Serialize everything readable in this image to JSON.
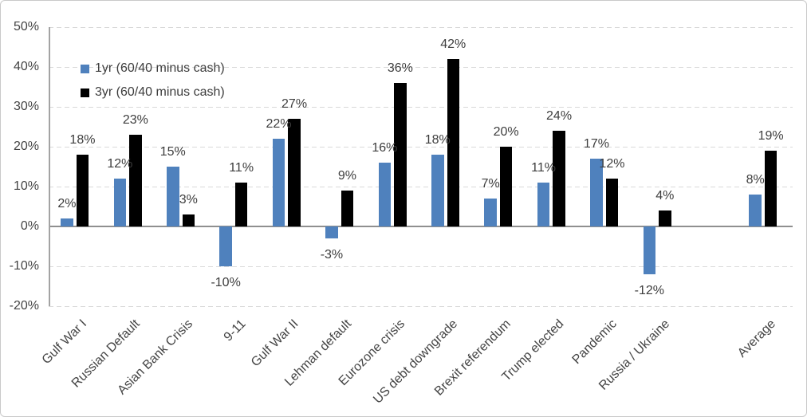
{
  "chart_data": {
    "type": "bar",
    "title": "",
    "categories": [
      "Gulf War I",
      "Russian Default",
      "Asian Bank Crisis",
      "9-11",
      "Gulf War II",
      "Lehman default",
      "Eurozone crisis",
      "US debt downgrade",
      "Brexit referendum",
      "Trump elected",
      "Pandemic",
      "Russia / Ukraine",
      "",
      "Average"
    ],
    "series": [
      {
        "name": "1yr (60/40 minus cash)",
        "color": "#4F81BD",
        "values": [
          2,
          12,
          15,
          -10,
          22,
          -3,
          16,
          18,
          7,
          11,
          17,
          -12,
          null,
          8
        ]
      },
      {
        "name": "3yr (60/40 minus cash)",
        "color": "#000000",
        "values": [
          18,
          23,
          3,
          11,
          27,
          9,
          36,
          42,
          20,
          24,
          12,
          4,
          null,
          19
        ]
      }
    ],
    "ylim": [
      -20,
      50
    ],
    "yticks": [
      {
        "value": 50,
        "label": "50%"
      },
      {
        "value": 40,
        "label": "40%"
      },
      {
        "value": 30,
        "label": "30%"
      },
      {
        "value": 20,
        "label": "20%"
      },
      {
        "value": 10,
        "label": "10%"
      },
      {
        "value": 0,
        "label": "0%"
      },
      {
        "value": -10,
        "label": "-10%"
      },
      {
        "value": -20,
        "label": "-20%"
      }
    ],
    "data_label_format": "{v}%",
    "grid": "dashed-horizontal",
    "legend_position": "top-left-inside",
    "colors": {
      "gridline": "#d9d9d9",
      "zero_line": "#8f8f8f",
      "axis_line": "#a3a3a3",
      "text": "#3d3d3d"
    }
  }
}
